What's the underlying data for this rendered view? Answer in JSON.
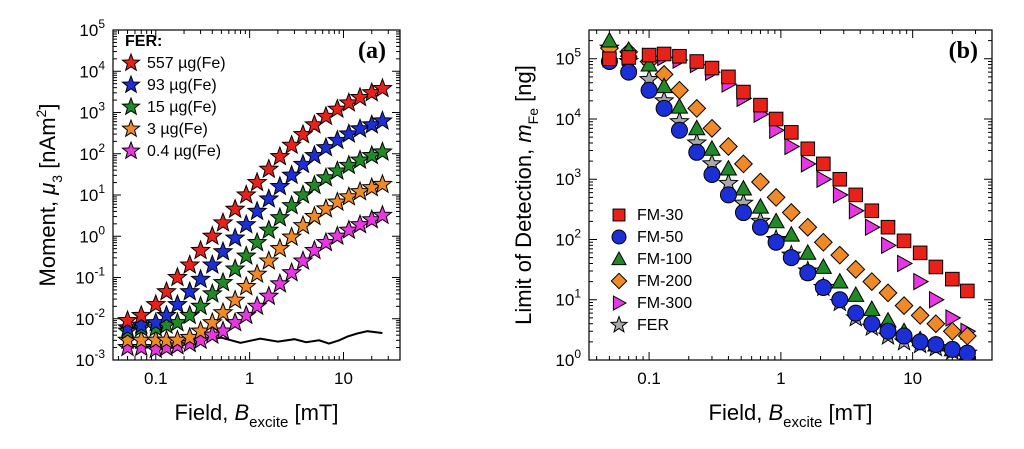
{
  "chart_data": [
    {
      "type": "scatter",
      "panel_label": "(a)",
      "xlabel": {
        "main": "Field, ",
        "var": "B",
        "sub": "excite",
        "unit": " [mT]"
      },
      "ylabel": {
        "main": "Moment, ",
        "var": "μ",
        "sub": "3",
        "unit": " [nAm",
        "sup": "2",
        "close": "]"
      },
      "xscale": "log",
      "yscale": "log",
      "xlim": [
        0.035,
        40
      ],
      "ylim": [
        0.001,
        100000
      ],
      "xticks": [
        {
          "v": 0.1,
          "t": "0.1"
        },
        {
          "v": 1,
          "t": "1"
        },
        {
          "v": 10,
          "t": "10"
        }
      ],
      "yticks": [
        {
          "v": 0.001,
          "m": "10",
          "e": "-3"
        },
        {
          "v": 0.01,
          "m": "10",
          "e": "-2"
        },
        {
          "v": 0.1,
          "m": "10",
          "e": "-1"
        },
        {
          "v": 1,
          "m": "10",
          "e": "0"
        },
        {
          "v": 10,
          "m": "10",
          "e": "1"
        },
        {
          "v": 100,
          "m": "10",
          "e": "2"
        },
        {
          "v": 1000,
          "m": "10",
          "e": "3"
        },
        {
          "v": 10000,
          "m": "10",
          "e": "4"
        },
        {
          "v": 100000,
          "m": "10",
          "e": "5"
        }
      ],
      "legend_title": "FER:",
      "legend_position": "top-left",
      "x": [
        0.05,
        0.07,
        0.1,
        0.13,
        0.17,
        0.23,
        0.3,
        0.4,
        0.52,
        0.7,
        0.92,
        1.2,
        1.6,
        2.1,
        2.8,
        3.7,
        4.9,
        6.5,
        8.6,
        11.4,
        15,
        20,
        26
      ],
      "series": [
        {
          "name": "557 µg(Fe)",
          "color": "#e8221b",
          "marker": "star",
          "values": [
            0.009,
            0.012,
            0.022,
            0.045,
            0.1,
            0.2,
            0.45,
            1,
            2.1,
            4.5,
            10,
            20,
            42,
            85,
            160,
            290,
            500,
            800,
            1200,
            1700,
            2300,
            3000,
            3800
          ]
        },
        {
          "name": "93 µg(Fe)",
          "color": "#1c2fd6",
          "marker": "star",
          "values": [
            0.006,
            0.007,
            0.008,
            0.012,
            0.022,
            0.045,
            0.09,
            0.2,
            0.42,
            0.9,
            1.9,
            4,
            8,
            16,
            30,
            55,
            90,
            140,
            210,
            300,
            400,
            500,
            620
          ]
        },
        {
          "name": "15 µg(Fe)",
          "color": "#1f8a26",
          "marker": "star",
          "values": [
            0.005,
            0.006,
            0.006,
            0.007,
            0.008,
            0.012,
            0.02,
            0.04,
            0.075,
            0.16,
            0.33,
            0.7,
            1.4,
            2.8,
            5.5,
            10,
            17,
            26,
            38,
            52,
            70,
            90,
            110
          ]
        },
        {
          "name": "3 µg(Fe)",
          "color": "#f08a28",
          "marker": "star",
          "values": [
            0.003,
            0.003,
            0.003,
            0.003,
            0.003,
            0.0035,
            0.005,
            0.008,
            0.014,
            0.028,
            0.06,
            0.12,
            0.25,
            0.5,
            0.95,
            1.8,
            3,
            4.6,
            6.7,
            9,
            12,
            15,
            18
          ]
        },
        {
          "name": "0.4 µg(Fe)",
          "color": "#e637e0",
          "marker": "star",
          "values": [
            0.002,
            0.002,
            0.0018,
            0.002,
            0.0022,
            0.0025,
            0.003,
            0.004,
            0.005,
            0.008,
            0.012,
            0.02,
            0.035,
            0.07,
            0.13,
            0.25,
            0.45,
            0.7,
            1,
            1.4,
            1.9,
            2.5,
            3.2
          ]
        }
      ],
      "noise_floor": {
        "color": "#000000",
        "x": [
          0.2,
          0.3,
          0.5,
          0.8,
          1.3,
          2,
          3,
          4,
          5.5,
          7,
          9,
          11,
          14,
          18,
          26
        ],
        "values": [
          0.0025,
          0.003,
          0.0035,
          0.0026,
          0.0033,
          0.0028,
          0.0032,
          0.0027,
          0.003,
          0.0025,
          0.003,
          0.0037,
          0.0044,
          0.005,
          0.0045
        ]
      }
    },
    {
      "type": "scatter",
      "panel_label": "(b)",
      "xlabel": {
        "main": "Field, ",
        "var": "B",
        "sub": "excite",
        "unit": " [mT]"
      },
      "ylabel": {
        "main": "Limit of Detection, ",
        "var": "m",
        "sub": "Fe",
        "unit": " [ng]"
      },
      "xscale": "log",
      "yscale": "log",
      "xlim": [
        0.035,
        40
      ],
      "ylim": [
        1,
        300000
      ],
      "xticks": [
        {
          "v": 0.1,
          "t": "0.1"
        },
        {
          "v": 1,
          "t": "1"
        },
        {
          "v": 10,
          "t": "10"
        }
      ],
      "yticks": [
        {
          "v": 1,
          "m": "10",
          "e": "0"
        },
        {
          "v": 10,
          "m": "10",
          "e": "1"
        },
        {
          "v": 100,
          "m": "10",
          "e": "2"
        },
        {
          "v": 1000,
          "m": "10",
          "e": "3"
        },
        {
          "v": 10000,
          "m": "10",
          "e": "4"
        },
        {
          "v": 100000,
          "m": "10",
          "e": "5"
        }
      ],
      "legend_position": "lower-left",
      "x": [
        0.05,
        0.07,
        0.1,
        0.13,
        0.17,
        0.23,
        0.3,
        0.4,
        0.52,
        0.7,
        0.92,
        1.2,
        1.6,
        2.1,
        2.8,
        3.7,
        4.9,
        6.5,
        8.6,
        11.4,
        15,
        20,
        26
      ],
      "series": [
        {
          "name": "FM-30",
          "color": "#e8221b",
          "marker": "square",
          "values": [
            100000,
            105000,
            115000,
            120000,
            110000,
            90000,
            70000,
            50000,
            28000,
            17000,
            10000,
            6000,
            3200,
            1800,
            1000,
            550,
            300,
            160,
            95,
            60,
            35,
            22,
            14
          ]
        },
        {
          "name": "FM-50",
          "color": "#1c2fd6",
          "marker": "circle",
          "values": [
            90000,
            60000,
            30000,
            15000,
            6500,
            2800,
            1200,
            550,
            280,
            160,
            90,
            50,
            28,
            16,
            10,
            6,
            4,
            3,
            2.5,
            2,
            1.8,
            1.5,
            1.3
          ]
        },
        {
          "name": "FM-100",
          "color": "#1f8a26",
          "marker": "triangle",
          "values": [
            200000,
            140000,
            80000,
            35000,
            16000,
            7000,
            3200,
            1500,
            700,
            350,
            200,
            120,
            60,
            35,
            20,
            12,
            7,
            4.5,
            3,
            2.2,
            1.8,
            1.5,
            1.3
          ]
        },
        {
          "name": "FM-200",
          "color": "#f08a28",
          "marker": "diamond",
          "values": [
            150000,
            130000,
            90000,
            55000,
            30000,
            15000,
            7000,
            3500,
            1800,
            900,
            500,
            280,
            160,
            90,
            55,
            32,
            20,
            13,
            8,
            5.5,
            4,
            3,
            2.5
          ]
        },
        {
          "name": "FM-300",
          "color": "#e637e0",
          "marker": "tri-right",
          "values": [
            100000,
            105000,
            110000,
            105000,
            95000,
            80000,
            60000,
            38000,
            22000,
            12000,
            6500,
            3500,
            1800,
            1000,
            550,
            300,
            160,
            80,
            40,
            20,
            10,
            5,
            3
          ]
        },
        {
          "name": "FER",
          "color": "#a9a9a9",
          "marker": "star",
          "values": [
            150000,
            90000,
            45000,
            20000,
            9000,
            4000,
            1800,
            850,
            400,
            200,
            100,
            55,
            30,
            16,
            9,
            5,
            3.5,
            2.5,
            2,
            1.8,
            1.6,
            1.4,
            1.3
          ]
        }
      ]
    }
  ]
}
